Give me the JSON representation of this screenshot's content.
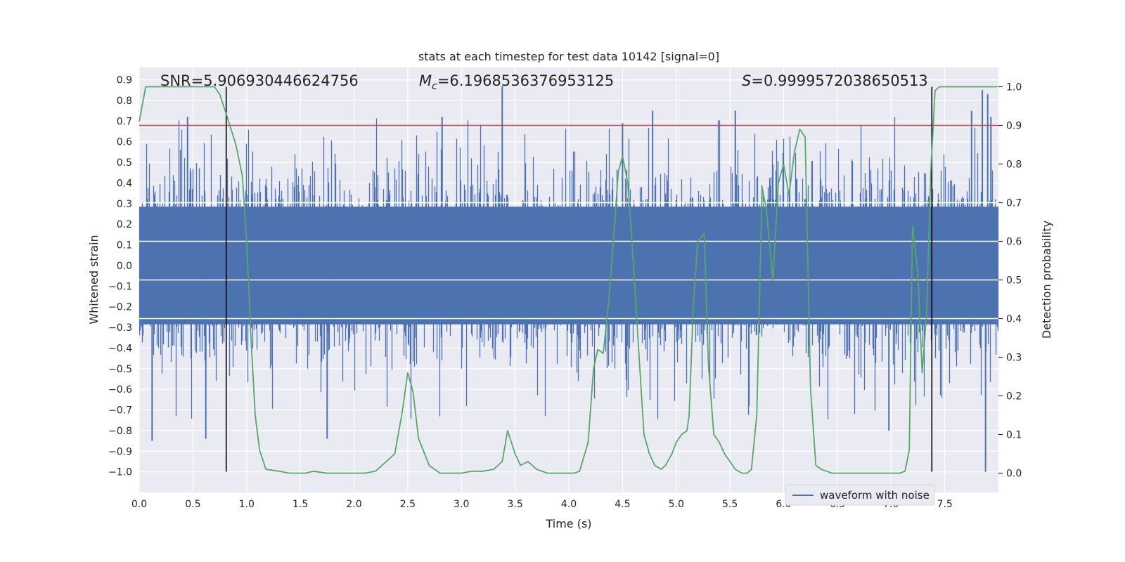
{
  "chart_data": {
    "type": "line",
    "title": "stats at each timestep for test data 10142 [signal=0]",
    "xlabel": "Time (s)",
    "ylabel": "Whitened strain",
    "y2label": "Detection probability",
    "xlim": [
      0,
      8
    ],
    "ylim": [
      -1.1,
      0.96
    ],
    "y2lim": [
      -0.05,
      1.05
    ],
    "x_ticks": [
      0.0,
      0.5,
      1.0,
      1.5,
      2.0,
      2.5,
      3.0,
      3.5,
      4.0,
      4.5,
      5.0,
      5.5,
      6.0,
      6.5,
      7.0,
      7.5
    ],
    "x_tick_labels": [
      "0.0",
      "0.5",
      "1.0",
      "1.5",
      "2.0",
      "2.5",
      "3.0",
      "3.5",
      "4.0",
      "4.5",
      "5.0",
      "5.5",
      "6.0",
      "6.5",
      "7.0",
      "7.5"
    ],
    "y_ticks": [
      0.9,
      0.8,
      0.7,
      0.6,
      0.5,
      0.4,
      0.3,
      0.2,
      0.1,
      0.0,
      -0.1,
      -0.2,
      -0.3,
      -0.4,
      -0.5,
      -0.6,
      -0.7,
      -0.8,
      -0.9,
      -1.0
    ],
    "y_tick_labels": [
      "0.9",
      "0.8",
      "0.7",
      "0.6",
      "0.5",
      "0.4",
      "0.3",
      "0.2",
      "0.1",
      "0.0",
      "−0.1",
      "−0.2",
      "−0.3",
      "−0.4",
      "−0.5",
      "−0.6",
      "−0.7",
      "−0.8",
      "−0.9",
      "−1.0"
    ],
    "y2_ticks": [
      1.0,
      0.9,
      0.8,
      0.7,
      0.6,
      0.5,
      0.4,
      0.3,
      0.2,
      0.1,
      0.0
    ],
    "y2_tick_labels": [
      "1.0",
      "0.9",
      "0.8",
      "0.7",
      "0.6",
      "0.5",
      "0.4",
      "0.3",
      "0.2",
      "0.1",
      "0.0"
    ],
    "grid": true,
    "legend_position": "lower-right",
    "annotations": {
      "snr": "SNR=5.906930446624756",
      "mc_symbol": "M",
      "mc_subscript": "c",
      "mc_value": "=6.1968536376953125",
      "s_symbol": "S",
      "s_value": "=0.9999572038650513"
    },
    "threshold_prob": 0.9,
    "vertical_lines_x": [
      0.81,
      7.38
    ],
    "vertical_lines_ybottom": -1.0,
    "vertical_lines_y2top": 1.0,
    "series": [
      {
        "name": "waveform with noise",
        "axis": "left",
        "style": "noise",
        "typical_amplitude": 0.3,
        "seed": 10142,
        "spikes": [
          {
            "x": 0.12,
            "y": -0.85
          },
          {
            "x": 0.45,
            "y": 0.72
          },
          {
            "x": 0.62,
            "y": -0.84
          },
          {
            "x": 1.75,
            "y": -0.84
          },
          {
            "x": 2.82,
            "y": 0.72
          },
          {
            "x": 3.38,
            "y": 0.87
          },
          {
            "x": 4.5,
            "y": 0.69
          },
          {
            "x": 4.78,
            "y": 0.75
          },
          {
            "x": 5.55,
            "y": 0.75
          },
          {
            "x": 6.98,
            "y": -0.8
          },
          {
            "x": 7.75,
            "y": 0.75
          },
          {
            "x": 7.85,
            "y": 0.85
          },
          {
            "x": 7.88,
            "y": -1.0
          },
          {
            "x": 7.9,
            "y": 0.83
          },
          {
            "x": 7.93,
            "y": 0.72
          }
        ]
      },
      {
        "name": "detection probability",
        "axis": "right",
        "x": [
          0.0,
          0.06,
          0.3,
          0.5,
          0.6,
          0.7,
          0.75,
          0.81,
          0.9,
          0.96,
          1.0,
          1.04,
          1.08,
          1.12,
          1.18,
          1.3,
          1.4,
          1.55,
          1.62,
          1.75,
          1.88,
          2.0,
          2.1,
          2.2,
          2.3,
          2.38,
          2.45,
          2.5,
          2.55,
          2.6,
          2.7,
          2.8,
          3.0,
          3.1,
          3.2,
          3.3,
          3.38,
          3.43,
          3.5,
          3.55,
          3.62,
          3.7,
          3.8,
          3.9,
          4.05,
          4.1,
          4.18,
          4.23,
          4.27,
          4.32,
          4.37,
          4.42,
          4.46,
          4.5,
          4.55,
          4.6,
          4.65,
          4.7,
          4.75,
          4.8,
          4.86,
          4.9,
          4.96,
          5.0,
          5.05,
          5.1,
          5.12,
          5.16,
          5.2,
          5.26,
          5.3,
          5.35,
          5.4,
          5.45,
          5.55,
          5.61,
          5.66,
          5.7,
          5.75,
          5.8,
          5.84,
          5.9,
          5.95,
          6.0,
          6.05,
          6.1,
          6.15,
          6.2,
          6.25,
          6.3,
          6.35,
          6.4,
          6.45,
          6.5,
          6.6,
          7.0,
          7.08,
          7.13,
          7.17,
          7.2,
          7.25,
          7.29,
          7.33,
          7.37,
          7.41,
          7.45,
          7.5,
          7.99
        ],
        "values": [
          0.91,
          1.0,
          1.0,
          1.0,
          1.0,
          1.0,
          0.98,
          0.93,
          0.85,
          0.77,
          0.6,
          0.35,
          0.15,
          0.06,
          0.01,
          0.005,
          0.0,
          0.0,
          0.005,
          0.0,
          0.0,
          0.0,
          0.0,
          0.005,
          0.03,
          0.05,
          0.16,
          0.26,
          0.21,
          0.09,
          0.02,
          0.0,
          0.0,
          0.005,
          0.005,
          0.01,
          0.03,
          0.11,
          0.05,
          0.02,
          0.03,
          0.01,
          0.0,
          0.0,
          0.0,
          0.005,
          0.08,
          0.27,
          0.32,
          0.31,
          0.44,
          0.62,
          0.78,
          0.82,
          0.75,
          0.55,
          0.32,
          0.1,
          0.05,
          0.02,
          0.01,
          0.02,
          0.05,
          0.08,
          0.1,
          0.11,
          0.15,
          0.44,
          0.6,
          0.62,
          0.28,
          0.1,
          0.08,
          0.05,
          0.01,
          0.0,
          0.0,
          0.01,
          0.15,
          0.74,
          0.68,
          0.5,
          0.75,
          0.8,
          0.72,
          0.83,
          0.89,
          0.87,
          0.22,
          0.02,
          0.01,
          0.005,
          0.0,
          0.0,
          0.0,
          0.0,
          0.0,
          0.005,
          0.06,
          0.64,
          0.52,
          0.26,
          0.41,
          0.78,
          0.99,
          1.0,
          1.0,
          1.0
        ]
      }
    ]
  }
}
